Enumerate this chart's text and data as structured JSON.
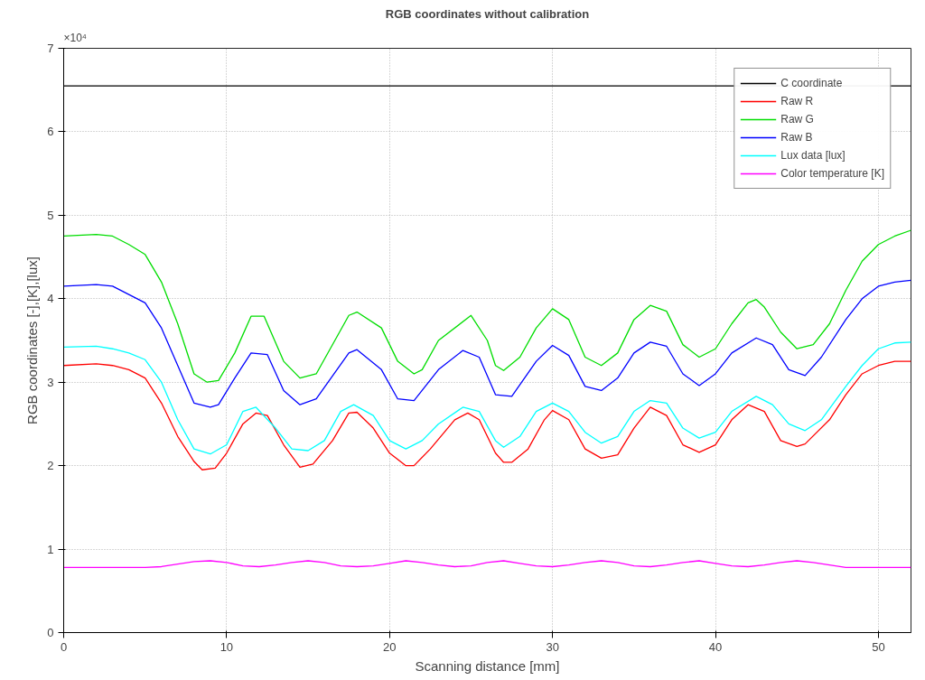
{
  "chart_data": {
    "type": "line",
    "title": "RGB coordinates without calibration",
    "xlabel": "Scanning distance [mm]",
    "ylabel": "RGB coordinates [-],[K],[lux]",
    "annotations": [
      "×10⁴"
    ],
    "xlim": [
      0,
      52
    ],
    "ylim": [
      0,
      7
    ],
    "xticks": [
      0,
      10,
      20,
      30,
      40,
      50
    ],
    "yticks": [
      0,
      1,
      2,
      3,
      4,
      5,
      6,
      7
    ],
    "grid": true,
    "legend": "top right",
    "line_style": "solid",
    "marker": "none",
    "series": [
      {
        "name": "C coordinate",
        "color": "#000000",
        "x": [
          0,
          52
        ],
        "values": [
          6.55,
          6.55
        ]
      },
      {
        "name": "Raw R",
        "color": "#ff0000",
        "x": [
          0,
          2,
          3,
          4,
          5,
          6,
          7,
          8,
          8.5,
          9.3,
          10,
          11,
          11.8,
          12.5,
          13.5,
          14.5,
          15.3,
          16.5,
          17.5,
          18,
          19,
          20,
          21,
          21.5,
          22.5,
          24,
          24.8,
          25.5,
          26.5,
          27,
          27.5,
          28.5,
          29.5,
          30,
          31,
          32,
          33,
          34,
          35,
          36,
          37,
          38,
          39,
          40,
          41,
          42,
          43,
          44,
          45,
          45.5,
          47,
          48,
          49,
          50,
          51,
          52
        ],
        "values": [
          3.2,
          3.22,
          3.2,
          3.15,
          3.05,
          2.75,
          2.35,
          2.05,
          1.95,
          1.97,
          2.15,
          2.5,
          2.63,
          2.6,
          2.25,
          1.98,
          2.02,
          2.3,
          2.63,
          2.64,
          2.45,
          2.15,
          2.0,
          2.0,
          2.2,
          2.55,
          2.63,
          2.55,
          2.15,
          2.04,
          2.04,
          2.2,
          2.55,
          2.66,
          2.55,
          2.2,
          2.09,
          2.13,
          2.45,
          2.7,
          2.6,
          2.25,
          2.16,
          2.25,
          2.55,
          2.73,
          2.65,
          2.3,
          2.23,
          2.26,
          2.55,
          2.85,
          3.1,
          3.2,
          3.25,
          3.25
        ]
      },
      {
        "name": "Raw G",
        "color": "#00dd00",
        "x": [
          0,
          2,
          3,
          4,
          5,
          6,
          7,
          8,
          8.8,
          9.5,
          10.5,
          11.5,
          12.3,
          13.5,
          14.5,
          15.5,
          17.5,
          18,
          19.5,
          20.5,
          21.5,
          22,
          23,
          25,
          26,
          26.5,
          27,
          28,
          29,
          30,
          31,
          32,
          33,
          34,
          35,
          36,
          37,
          38,
          39,
          40,
          41,
          42,
          42.5,
          43,
          44,
          45,
          46,
          47,
          48,
          49,
          50,
          51,
          52
        ],
        "values": [
          4.75,
          4.77,
          4.75,
          4.65,
          4.53,
          4.2,
          3.7,
          3.1,
          3.0,
          3.02,
          3.35,
          3.79,
          3.79,
          3.25,
          3.05,
          3.1,
          3.8,
          3.84,
          3.65,
          3.25,
          3.1,
          3.15,
          3.5,
          3.8,
          3.5,
          3.2,
          3.14,
          3.3,
          3.65,
          3.88,
          3.75,
          3.3,
          3.2,
          3.35,
          3.75,
          3.92,
          3.85,
          3.45,
          3.3,
          3.4,
          3.7,
          3.95,
          3.99,
          3.9,
          3.6,
          3.4,
          3.45,
          3.7,
          4.1,
          4.45,
          4.65,
          4.75,
          4.82
        ]
      },
      {
        "name": "Raw B",
        "color": "#0000ff",
        "x": [
          0,
          2,
          3,
          4,
          5,
          6,
          7,
          8,
          9,
          9.5,
          10.5,
          11.5,
          12.5,
          13.5,
          14.5,
          15.5,
          17.5,
          18,
          19.5,
          20.5,
          21.5,
          23,
          24.5,
          25.5,
          26.5,
          27.5,
          29,
          30,
          31,
          32,
          33,
          34,
          35,
          36,
          37,
          38,
          39,
          40,
          41,
          42.5,
          43.5,
          44.5,
          45.5,
          46.5,
          48,
          49,
          50,
          51,
          52
        ],
        "values": [
          4.15,
          4.17,
          4.15,
          4.05,
          3.95,
          3.65,
          3.2,
          2.75,
          2.7,
          2.73,
          3.05,
          3.35,
          3.33,
          2.9,
          2.73,
          2.8,
          3.35,
          3.39,
          3.15,
          2.8,
          2.78,
          3.15,
          3.38,
          3.3,
          2.85,
          2.83,
          3.25,
          3.44,
          3.32,
          2.95,
          2.9,
          3.05,
          3.35,
          3.48,
          3.43,
          3.1,
          2.96,
          3.1,
          3.35,
          3.53,
          3.45,
          3.15,
          3.08,
          3.3,
          3.75,
          4.0,
          4.15,
          4.2,
          4.22
        ]
      },
      {
        "name": "Lux data [lux]",
        "color": "#00ffff",
        "x": [
          0,
          2,
          3,
          4,
          5,
          6,
          7,
          8,
          9,
          10,
          11,
          11.8,
          13,
          14,
          15,
          16,
          17,
          17.8,
          19,
          20,
          21,
          22,
          23,
          24.5,
          25.5,
          26.5,
          27,
          28,
          29,
          30,
          31,
          32,
          33,
          34,
          35,
          36,
          37,
          38,
          39,
          40,
          41,
          42.5,
          43.5,
          44.5,
          45.5,
          46.5,
          48,
          49,
          50,
          51,
          52
        ],
        "values": [
          3.42,
          3.43,
          3.4,
          3.35,
          3.27,
          3.0,
          2.55,
          2.2,
          2.14,
          2.25,
          2.65,
          2.7,
          2.45,
          2.2,
          2.18,
          2.3,
          2.65,
          2.73,
          2.6,
          2.3,
          2.2,
          2.3,
          2.5,
          2.7,
          2.65,
          2.3,
          2.22,
          2.35,
          2.65,
          2.75,
          2.65,
          2.4,
          2.27,
          2.35,
          2.65,
          2.78,
          2.75,
          2.45,
          2.33,
          2.4,
          2.65,
          2.83,
          2.73,
          2.5,
          2.42,
          2.55,
          2.95,
          3.2,
          3.4,
          3.47,
          3.48
        ]
      },
      {
        "name": "Color temperature [K]",
        "color": "#ff00ff",
        "x": [
          0,
          5,
          6,
          7,
          8,
          9,
          10,
          11,
          12,
          13,
          14,
          15,
          16,
          17,
          18,
          19,
          20,
          21,
          22,
          23,
          24,
          25,
          26,
          27,
          28,
          29,
          30,
          31,
          32,
          33,
          34,
          35,
          36,
          37,
          38,
          39,
          40,
          41,
          42,
          43,
          44,
          45,
          46,
          47,
          48,
          52
        ],
        "values": [
          0.78,
          0.78,
          0.79,
          0.82,
          0.85,
          0.86,
          0.84,
          0.8,
          0.79,
          0.81,
          0.84,
          0.86,
          0.84,
          0.8,
          0.79,
          0.8,
          0.83,
          0.86,
          0.84,
          0.81,
          0.79,
          0.8,
          0.84,
          0.86,
          0.83,
          0.8,
          0.79,
          0.81,
          0.84,
          0.86,
          0.84,
          0.8,
          0.79,
          0.81,
          0.84,
          0.86,
          0.83,
          0.8,
          0.79,
          0.81,
          0.84,
          0.86,
          0.84,
          0.81,
          0.78,
          0.78
        ]
      }
    ]
  }
}
